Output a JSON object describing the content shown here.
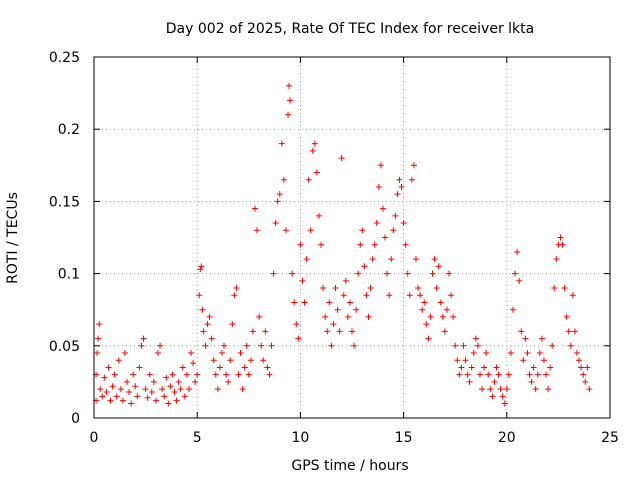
{
  "chart_data": {
    "type": "scatter",
    "title": "Day 002 of 2025, Rate Of TEC Index for receiver lkta",
    "xlabel": "GPS time / hours",
    "ylabel": "ROTI / TECUs",
    "xlim": [
      0,
      25
    ],
    "ylim": [
      0,
      0.25
    ],
    "xticks": [
      0,
      5,
      10,
      15,
      20,
      25
    ],
    "yticks": [
      0,
      0.05,
      0.1,
      0.15,
      0.2,
      0.25
    ],
    "xtick_labels": [
      "0",
      "5",
      "10",
      "15",
      "20",
      "25"
    ],
    "ytick_labels": [
      "0",
      "0.05",
      "0.1",
      "0.15",
      "0.2",
      "0.25"
    ],
    "grid": true,
    "marker": "+",
    "series": [
      {
        "name": "ROTI",
        "color": "#ff0000",
        "points": [
          [
            0.1,
            0.012
          ],
          [
            0.1,
            0.03
          ],
          [
            0.15,
            0.045
          ],
          [
            0.2,
            0.055
          ],
          [
            0.25,
            0.065
          ],
          [
            0.3,
            0.02
          ],
          [
            0.4,
            0.015
          ],
          [
            0.5,
            0.028
          ],
          [
            0.6,
            0.018
          ],
          [
            0.7,
            0.035
          ],
          [
            0.8,
            0.012
          ],
          [
            0.9,
            0.022
          ],
          [
            1.0,
            0.03
          ],
          [
            1.1,
            0.015
          ],
          [
            1.2,
            0.04
          ],
          [
            1.3,
            0.02
          ],
          [
            1.4,
            0.012
          ],
          [
            1.5,
            0.045
          ],
          [
            1.6,
            0.025
          ],
          [
            1.7,
            0.018
          ],
          [
            1.8,
            0.01
          ],
          [
            1.9,
            0.03
          ],
          [
            2.0,
            0.022
          ],
          [
            2.1,
            0.015
          ],
          [
            2.2,
            0.035
          ],
          [
            2.3,
            0.05
          ],
          [
            2.4,
            0.055
          ],
          [
            2.5,
            0.02
          ],
          [
            2.6,
            0.014
          ],
          [
            2.7,
            0.03
          ],
          [
            2.8,
            0.018
          ],
          [
            2.9,
            0.025
          ],
          [
            3.0,
            0.012
          ],
          [
            3.1,
            0.045
          ],
          [
            3.2,
            0.05
          ],
          [
            3.3,
            0.02
          ],
          [
            3.4,
            0.015
          ],
          [
            3.5,
            0.028
          ],
          [
            3.6,
            0.01
          ],
          [
            3.7,
            0.022
          ],
          [
            3.8,
            0.03
          ],
          [
            3.9,
            0.018
          ],
          [
            4.0,
            0.012
          ],
          [
            4.1,
            0.025
          ],
          [
            4.2,
            0.02
          ],
          [
            4.3,
            0.035
          ],
          [
            4.4,
            0.015
          ],
          [
            4.5,
            0.03
          ],
          [
            4.6,
            0.02
          ],
          [
            4.7,
            0.045
          ],
          [
            4.8,
            0.038
          ],
          [
            4.9,
            0.025
          ],
          [
            5.0,
            0.03
          ],
          [
            5.1,
            0.085
          ],
          [
            5.15,
            0.103
          ],
          [
            5.2,
            0.105
          ],
          [
            5.25,
            0.075
          ],
          [
            5.3,
            0.06
          ],
          [
            5.4,
            0.05
          ],
          [
            5.5,
            0.065
          ],
          [
            5.6,
            0.07
          ],
          [
            5.7,
            0.055
          ],
          [
            5.8,
            0.04
          ],
          [
            5.9,
            0.03
          ],
          [
            6.0,
            0.02
          ],
          [
            6.1,
            0.035
          ],
          [
            6.2,
            0.045
          ],
          [
            6.3,
            0.05
          ],
          [
            6.4,
            0.03
          ],
          [
            6.5,
            0.025
          ],
          [
            6.6,
            0.04
          ],
          [
            6.7,
            0.065
          ],
          [
            6.8,
            0.085
          ],
          [
            6.9,
            0.09
          ],
          [
            7.0,
            0.03
          ],
          [
            7.1,
            0.045
          ],
          [
            7.2,
            0.02
          ],
          [
            7.3,
            0.035
          ],
          [
            7.4,
            0.05
          ],
          [
            7.5,
            0.03
          ],
          [
            7.6,
            0.04
          ],
          [
            7.7,
            0.06
          ],
          [
            7.8,
            0.145
          ],
          [
            7.9,
            0.13
          ],
          [
            8.0,
            0.07
          ],
          [
            8.1,
            0.05
          ],
          [
            8.2,
            0.04
          ],
          [
            8.3,
            0.06
          ],
          [
            8.4,
            0.035
          ],
          [
            8.5,
            0.03
          ],
          [
            8.6,
            0.05
          ],
          [
            8.7,
            0.1
          ],
          [
            8.8,
            0.135
          ],
          [
            8.9,
            0.15
          ],
          [
            9.0,
            0.155
          ],
          [
            9.1,
            0.19
          ],
          [
            9.2,
            0.165
          ],
          [
            9.3,
            0.13
          ],
          [
            9.4,
            0.21
          ],
          [
            9.45,
            0.23
          ],
          [
            9.5,
            0.22
          ],
          [
            9.6,
            0.1
          ],
          [
            9.7,
            0.08
          ],
          [
            9.8,
            0.065
          ],
          [
            9.9,
            0.055
          ],
          [
            10.0,
            0.12
          ],
          [
            10.1,
            0.095
          ],
          [
            10.2,
            0.08
          ],
          [
            10.3,
            0.11
          ],
          [
            10.4,
            0.165
          ],
          [
            10.5,
            0.13
          ],
          [
            10.6,
            0.185
          ],
          [
            10.7,
            0.19
          ],
          [
            10.8,
            0.17
          ],
          [
            10.9,
            0.14
          ],
          [
            11.0,
            0.12
          ],
          [
            11.1,
            0.09
          ],
          [
            11.2,
            0.07
          ],
          [
            11.3,
            0.06
          ],
          [
            11.4,
            0.08
          ],
          [
            11.5,
            0.05
          ],
          [
            11.6,
            0.065
          ],
          [
            11.7,
            0.09
          ],
          [
            11.8,
            0.075
          ],
          [
            11.9,
            0.06
          ],
          [
            12.0,
            0.18
          ],
          [
            12.1,
            0.085
          ],
          [
            12.2,
            0.095
          ],
          [
            12.3,
            0.07
          ],
          [
            12.4,
            0.08
          ],
          [
            12.5,
            0.06
          ],
          [
            12.6,
            0.05
          ],
          [
            12.7,
            0.075
          ],
          [
            12.8,
            0.1
          ],
          [
            12.9,
            0.12
          ],
          [
            13.0,
            0.13
          ],
          [
            13.1,
            0.105
          ],
          [
            13.2,
            0.085
          ],
          [
            13.3,
            0.07
          ],
          [
            13.4,
            0.09
          ],
          [
            13.5,
            0.11
          ],
          [
            13.6,
            0.12
          ],
          [
            13.7,
            0.135
          ],
          [
            13.8,
            0.16
          ],
          [
            13.9,
            0.175
          ],
          [
            14.0,
            0.145
          ],
          [
            14.1,
            0.125
          ],
          [
            14.2,
            0.1
          ],
          [
            14.3,
            0.085
          ],
          [
            14.4,
            0.11
          ],
          [
            14.5,
            0.13
          ],
          [
            14.6,
            0.14
          ],
          [
            14.7,
            0.155
          ],
          [
            14.8,
            0.165
          ],
          [
            14.9,
            0.16
          ],
          [
            15.0,
            0.135
          ],
          [
            15.1,
            0.12
          ],
          [
            15.2,
            0.1
          ],
          [
            15.3,
            0.085
          ],
          [
            15.4,
            0.165
          ],
          [
            15.5,
            0.175
          ],
          [
            15.6,
            0.11
          ],
          [
            15.7,
            0.09
          ],
          [
            15.8,
            0.085
          ],
          [
            15.9,
            0.075
          ],
          [
            16.0,
            0.08
          ],
          [
            16.1,
            0.065
          ],
          [
            16.2,
            0.055
          ],
          [
            16.3,
            0.07
          ],
          [
            16.4,
            0.1
          ],
          [
            16.5,
            0.11
          ],
          [
            16.6,
            0.09
          ],
          [
            16.7,
            0.105
          ],
          [
            16.8,
            0.08
          ],
          [
            16.9,
            0.07
          ],
          [
            17.0,
            0.06
          ],
          [
            17.1,
            0.075
          ],
          [
            17.2,
            0.1
          ],
          [
            17.3,
            0.085
          ],
          [
            17.4,
            0.07
          ],
          [
            17.5,
            0.05
          ],
          [
            17.6,
            0.04
          ],
          [
            17.7,
            0.03
          ],
          [
            17.8,
            0.035
          ],
          [
            17.9,
            0.05
          ],
          [
            18.0,
            0.04
          ],
          [
            18.1,
            0.03
          ],
          [
            18.2,
            0.025
          ],
          [
            18.3,
            0.035
          ],
          [
            18.4,
            0.045
          ],
          [
            18.5,
            0.055
          ],
          [
            18.6,
            0.05
          ],
          [
            18.7,
            0.03
          ],
          [
            18.8,
            0.02
          ],
          [
            18.9,
            0.035
          ],
          [
            19.0,
            0.045
          ],
          [
            19.1,
            0.03
          ],
          [
            19.2,
            0.02
          ],
          [
            19.3,
            0.015
          ],
          [
            19.4,
            0.025
          ],
          [
            19.5,
            0.035
          ],
          [
            19.6,
            0.03
          ],
          [
            19.7,
            0.02
          ],
          [
            19.8,
            0.015
          ],
          [
            19.9,
            0.01
          ],
          [
            20.0,
            0.02
          ],
          [
            20.1,
            0.03
          ],
          [
            20.2,
            0.045
          ],
          [
            20.3,
            0.075
          ],
          [
            20.4,
            0.1
          ],
          [
            20.5,
            0.115
          ],
          [
            20.6,
            0.095
          ],
          [
            20.7,
            0.06
          ],
          [
            20.8,
            0.04
          ],
          [
            20.9,
            0.055
          ],
          [
            21.0,
            0.045
          ],
          [
            21.1,
            0.03
          ],
          [
            21.2,
            0.025
          ],
          [
            21.3,
            0.035
          ],
          [
            21.4,
            0.02
          ],
          [
            21.5,
            0.03
          ],
          [
            21.6,
            0.045
          ],
          [
            21.7,
            0.055
          ],
          [
            21.8,
            0.04
          ],
          [
            21.9,
            0.03
          ],
          [
            22.0,
            0.02
          ],
          [
            22.1,
            0.035
          ],
          [
            22.2,
            0.05
          ],
          [
            22.3,
            0.09
          ],
          [
            22.4,
            0.11
          ],
          [
            22.5,
            0.12
          ],
          [
            22.6,
            0.125
          ],
          [
            22.7,
            0.12
          ],
          [
            22.8,
            0.09
          ],
          [
            22.9,
            0.07
          ],
          [
            23.0,
            0.06
          ],
          [
            23.1,
            0.05
          ],
          [
            23.2,
            0.085
          ],
          [
            23.3,
            0.06
          ],
          [
            23.4,
            0.045
          ],
          [
            23.5,
            0.04
          ],
          [
            23.6,
            0.035
          ],
          [
            23.7,
            0.03
          ],
          [
            23.8,
            0.025
          ],
          [
            23.9,
            0.035
          ],
          [
            24.0,
            0.02
          ]
        ]
      }
    ]
  }
}
